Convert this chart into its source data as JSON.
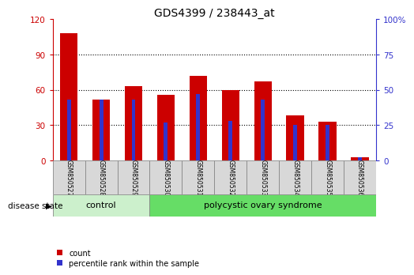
{
  "title": "GDS4399 / 238443_at",
  "samples": [
    "GSM850527",
    "GSM850528",
    "GSM850529",
    "GSM850530",
    "GSM850531",
    "GSM850532",
    "GSM850533",
    "GSM850534",
    "GSM850535",
    "GSM850536"
  ],
  "counts": [
    108,
    52,
    63,
    56,
    72,
    60,
    67,
    38,
    33,
    3
  ],
  "percentiles": [
    43,
    43,
    43,
    27,
    47,
    28,
    43,
    25,
    25,
    2
  ],
  "bar_color_red": "#cc0000",
  "bar_color_blue": "#3333cc",
  "left_ylim": [
    0,
    120
  ],
  "right_ylim": [
    0,
    100
  ],
  "left_yticks": [
    0,
    30,
    60,
    90,
    120
  ],
  "right_yticks": [
    0,
    25,
    50,
    75,
    100
  ],
  "right_yticklabels": [
    "0",
    "25",
    "50",
    "75",
    "100%"
  ],
  "control_samples": 3,
  "control_label": "control",
  "disease_label": "polycystic ovary syndrome",
  "disease_state_label": "disease state",
  "legend_count": "count",
  "legend_percentile": "percentile rank within the sample",
  "control_color": "#ccf0cc",
  "disease_color": "#66dd66",
  "grid_color": "#000000",
  "red_bar_width": 0.55,
  "blue_bar_width": 0.12,
  "title_fontsize": 10,
  "tick_fontsize": 7.5,
  "label_fontsize": 7.5
}
